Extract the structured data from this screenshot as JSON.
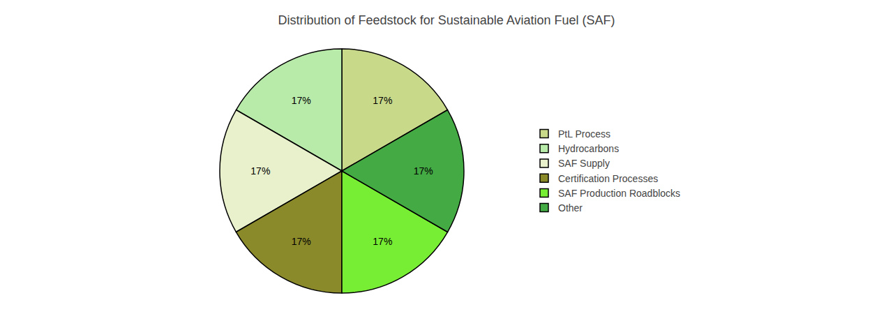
{
  "chart_data": {
    "type": "pie",
    "title": "Distribution of Feedstock for Sustainable Aviation Fuel (SAF)",
    "categories": [
      "PtL Process",
      "Hydrocarbons",
      "SAF Supply",
      "Certification Processes",
      "SAF Production Roadblocks",
      "Other"
    ],
    "values": [
      17,
      17,
      17,
      17,
      17,
      17
    ],
    "value_labels": [
      "17%",
      "17%",
      "17%",
      "17%",
      "17%",
      "17%"
    ],
    "colors": [
      "#c8d98a",
      "#b8eaaa",
      "#e8f0cc",
      "#8b8a2a",
      "#77ee33",
      "#44aa44"
    ],
    "data_labels": true,
    "legend": "right"
  }
}
